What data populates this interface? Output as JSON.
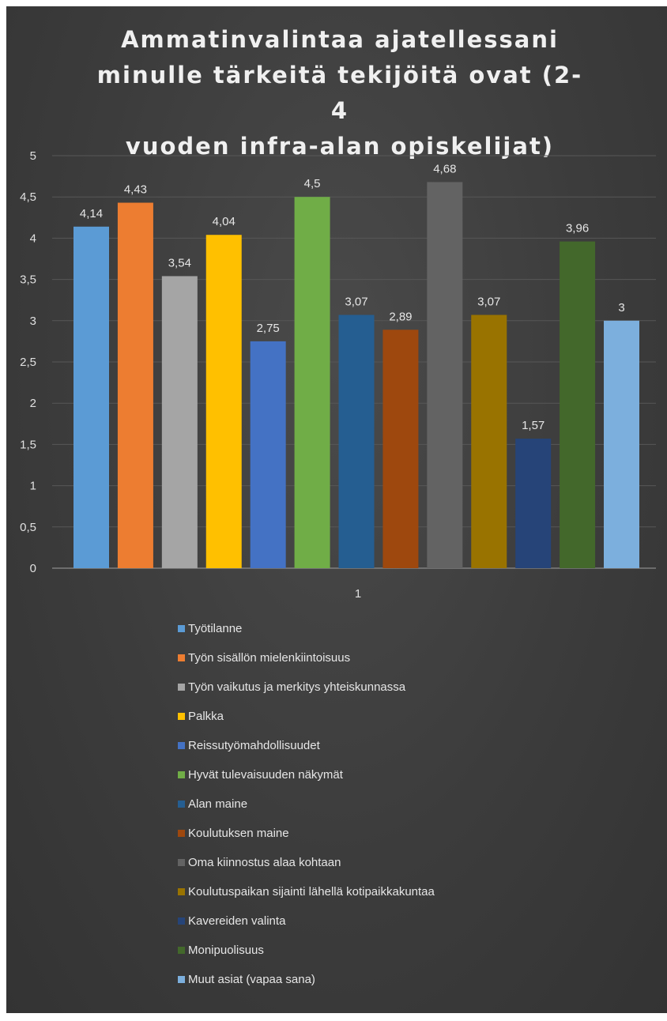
{
  "chart_data": {
    "type": "bar",
    "title": "Ammatinvalintaa ajatellessani minulle tärkeitä tekijöitä ovat (2-4 vuoden infra-alan opiskelijat)",
    "title_lines": [
      "Ammatinvalintaa ajatellessani",
      "minulle tärkeitä tekijöitä ovat (2-4",
      "vuoden infra-alan opiskelijat)"
    ],
    "categories": [
      "1"
    ],
    "ylim": [
      0,
      5
    ],
    "y_ticks": [
      "0",
      "0,5",
      "1",
      "1,5",
      "2",
      "2,5",
      "3",
      "3,5",
      "4",
      "4,5",
      "5"
    ],
    "grid": true,
    "legend_position": "bottom",
    "series": [
      {
        "name": "Työtilanne",
        "value": 4.14,
        "label": "4,14",
        "color": "#5b9bd5"
      },
      {
        "name": "Työn sisällön mielenkiintoisuus",
        "value": 4.43,
        "label": "4,43",
        "color": "#ed7d31"
      },
      {
        "name": "Työn vaikutus ja merkitys yhteiskunnassa",
        "value": 3.54,
        "label": "3,54",
        "color": "#a5a5a5"
      },
      {
        "name": "Palkka",
        "value": 4.04,
        "label": "4,04",
        "color": "#ffc000"
      },
      {
        "name": "Reissutyömahdollisuudet",
        "value": 2.75,
        "label": "2,75",
        "color": "#4472c4"
      },
      {
        "name": "Hyvät tulevaisuuden näkymät",
        "value": 4.5,
        "label": "4,5",
        "color": "#70ad47"
      },
      {
        "name": "Alan maine",
        "value": 3.07,
        "label": "3,07",
        "color": "#255e91"
      },
      {
        "name": "Koulutuksen maine",
        "value": 2.89,
        "label": "2,89",
        "color": "#9e480e"
      },
      {
        "name": "Oma kiinnostus alaa kohtaan",
        "value": 4.68,
        "label": "4,68",
        "color": "#636363"
      },
      {
        "name": "Koulutuspaikan sijainti lähellä kotipaikkakuntaa",
        "value": 3.07,
        "label": "3,07",
        "color": "#997300"
      },
      {
        "name": "Kavereiden valinta",
        "value": 1.57,
        "label": "1,57",
        "color": "#264478"
      },
      {
        "name": "Monipuolisuus",
        "value": 3.96,
        "label": "3,96",
        "color": "#43682b"
      },
      {
        "name": "Muut asiat (vapaa sana)",
        "value": 3,
        "label": "3",
        "color": "#7cafdd"
      }
    ]
  }
}
